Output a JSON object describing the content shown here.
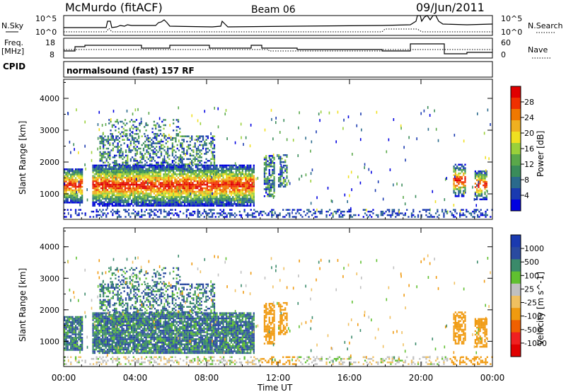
{
  "header": {
    "station": "McMurdo (fitACF)",
    "beam": "Beam 06",
    "date": "09/Jun/2011"
  },
  "top_panels": {
    "nsky_label": "N.Sky",
    "nsky_ticks": [
      "10^5",
      "10^0"
    ],
    "nsearch_label": "N.Search",
    "nsearch_ticks": [
      "10^5",
      "10^0"
    ],
    "freq_label": "Freq.",
    "freq_unit": "[MHz]",
    "freq_ticks": [
      "18",
      "8"
    ],
    "nave_label": "Nave",
    "nave_ticks": [
      "60",
      "0"
    ],
    "cpid_label": "CPID",
    "cpid_value": "normalsound (fast) 157 RF"
  },
  "colors": {
    "power": [
      "#0000e0",
      "#1a3ab0",
      "#2a6a8c",
      "#3a8c5a",
      "#5aa84a",
      "#9ad03a",
      "#f0e020",
      "#f0b020",
      "#f07800",
      "#f03000",
      "#e00000"
    ],
    "velocity": [
      "#e00000",
      "#f02020",
      "#f06000",
      "#f09a10",
      "#f0c060",
      "#c0c0c0",
      "#60c030",
      "#3a8a6a",
      "#2a4aa0",
      "#1a3ab0"
    ]
  },
  "chart_data": [
    {
      "type": "heatmap",
      "title": "",
      "ylabel": "Slant Range [km]",
      "xlabel": "Time UT",
      "x_ticks": [
        "00:00",
        "04:00",
        "08:00",
        "12:00",
        "16:00",
        "20:00",
        "00:00"
      ],
      "y_ticks": [
        "1000",
        "2000",
        "3000",
        "4000"
      ],
      "ylim": [
        200,
        4600
      ],
      "colorbar": {
        "label": "Power [dB]",
        "ticks": [
          "4",
          "8",
          "12",
          "16",
          "20",
          "24",
          "28"
        ],
        "range": [
          0,
          30
        ]
      }
    },
    {
      "type": "heatmap",
      "title": "",
      "ylabel": "Slant Range [km]",
      "xlabel": "Time UT",
      "x_ticks": [
        "00:00",
        "04:00",
        "08:00",
        "12:00",
        "16:00",
        "20:00",
        "00:00"
      ],
      "y_ticks": [
        "1000",
        "2000",
        "3000",
        "4000"
      ],
      "ylim": [
        200,
        4600
      ],
      "colorbar": {
        "label": "Velocity [m s^-1]",
        "ticks": [
          "1000",
          "500",
          "100",
          "25",
          "-25",
          "-100",
          "-500",
          "-1000"
        ]
      }
    }
  ]
}
